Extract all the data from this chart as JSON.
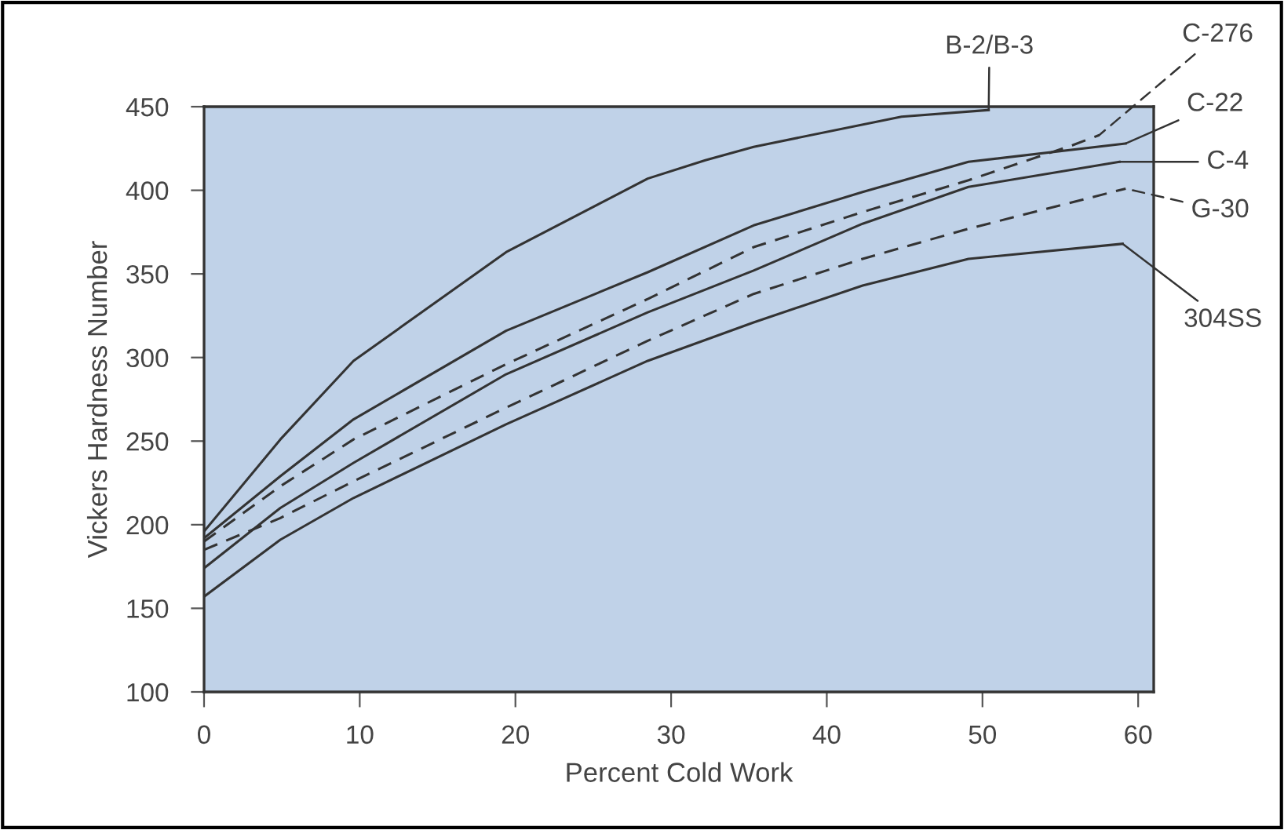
{
  "chart_data": {
    "type": "line",
    "xlabel": "Percent Cold Work",
    "ylabel": "Vickers Hardness Number",
    "xlim": [
      0,
      61
    ],
    "xticks": [
      0,
      10,
      20,
      30,
      40,
      50,
      60
    ],
    "ylim": [
      100,
      450
    ],
    "yticks": [
      100,
      150,
      200,
      250,
      300,
      350,
      400,
      450
    ],
    "grid": false,
    "marker": "none",
    "legend": "right",
    "series": [
      {
        "name": "B-2/B-3",
        "color": "#333333",
        "line_style": "solid",
        "x": [
          0,
          4.9,
          9.6,
          19.4,
          28.5,
          32.2,
          35.3,
          44.8,
          50.4
        ],
        "values": [
          196,
          251,
          298,
          363,
          407,
          418,
          426,
          444,
          448
        ]
      },
      {
        "name": "C-276",
        "color": "#333333",
        "line_style": "dashed",
        "x": [
          0,
          4.9,
          9.6,
          19.4,
          28.5,
          35.3,
          42.3,
          49.1,
          55.8,
          57.5
        ],
        "values": [
          190,
          223,
          251,
          296,
          335,
          366,
          387,
          406,
          427,
          433
        ]
      },
      {
        "name": "C-22",
        "color": "#333333",
        "line_style": "solid",
        "x": [
          0,
          4.9,
          9.6,
          19.4,
          28.5,
          35.3,
          42.3,
          49.1,
          59.2
        ],
        "values": [
          192,
          229,
          263,
          316,
          351,
          379,
          399,
          417,
          428
        ]
      },
      {
        "name": "C-4",
        "color": "#333333",
        "line_style": "solid",
        "x": [
          0,
          4.9,
          9.6,
          19.4,
          28.5,
          35.3,
          42.3,
          49.1,
          58.8
        ],
        "values": [
          174,
          210,
          237,
          290,
          327,
          352,
          380,
          402,
          417
        ]
      },
      {
        "name": "G-30",
        "color": "#333333",
        "line_style": "dashed",
        "x": [
          0,
          4.9,
          9.6,
          19.4,
          28.5,
          35.3,
          42.3,
          49.1,
          59.2
        ],
        "values": [
          185,
          204,
          226,
          270,
          310,
          338,
          359,
          377,
          401
        ]
      },
      {
        "name": "304SS",
        "color": "#333333",
        "line_style": "solid",
        "x": [
          0,
          4.9,
          9.6,
          19.4,
          28.5,
          35.3,
          42.3,
          49.1,
          59.0
        ],
        "values": [
          157,
          191,
          216,
          260,
          298,
          321,
          343,
          359,
          368
        ]
      }
    ]
  }
}
